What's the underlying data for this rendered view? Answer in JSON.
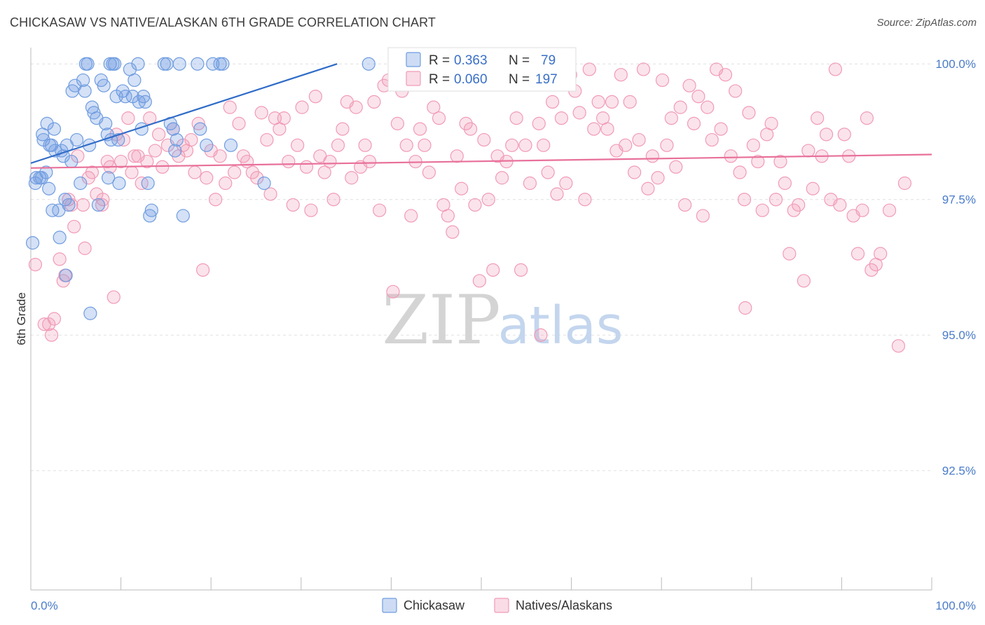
{
  "title": "CHICKASAW VS NATIVE/ALASKAN 6TH GRADE CORRELATION CHART",
  "source": "Source: ZipAtlas.com",
  "watermark": {
    "zip": "ZIP",
    "atlas": "atlas"
  },
  "chart_data": {
    "type": "scatter",
    "xlabel": "",
    "ylabel": "6th Grade",
    "xlim": [
      0,
      100
    ],
    "ylim": [
      90.3,
      100.3
    ],
    "x_tick_labels": [
      "0.0%",
      "100.0%"
    ],
    "y_ticks": [
      92.5,
      95.0,
      97.5,
      100.0
    ],
    "y_tick_labels": [
      "92.5%",
      "95.0%",
      "97.5%",
      "100.0%"
    ],
    "grid": "horizontal dashed",
    "legend_position": "top-center",
    "bottom_legend": [
      "Chickasaw",
      "Natives/Alaskans"
    ],
    "stats": [
      {
        "r_label": "R =",
        "r": "0.363",
        "n_label": "N =",
        "n": "79",
        "color": "#6f9ce0"
      },
      {
        "r_label": "R =",
        "r": "0.060",
        "n_label": "N =",
        "n": "197",
        "color": "#f19bb6"
      }
    ],
    "series": [
      {
        "name": "Chickasaw",
        "color": "#6f9ce0",
        "trend": {
          "x": [
            0,
            34
          ],
          "y": [
            98.17,
            100.0
          ]
        },
        "points": [
          [
            0.2,
            96.7
          ],
          [
            0.5,
            97.8
          ],
          [
            0.6,
            97.9
          ],
          [
            1.0,
            97.9
          ],
          [
            1.2,
            97.9
          ],
          [
            1.3,
            98.7
          ],
          [
            1.4,
            98.6
          ],
          [
            1.7,
            98.0
          ],
          [
            1.8,
            98.9
          ],
          [
            2.0,
            97.7
          ],
          [
            2.1,
            98.5
          ],
          [
            2.3,
            98.5
          ],
          [
            2.4,
            97.3
          ],
          [
            2.6,
            98.8
          ],
          [
            2.7,
            98.4
          ],
          [
            3.1,
            97.3
          ],
          [
            3.2,
            96.8
          ],
          [
            3.4,
            98.4
          ],
          [
            3.6,
            98.3
          ],
          [
            3.8,
            97.5
          ],
          [
            3.9,
            96.1
          ],
          [
            4.0,
            98.5
          ],
          [
            4.2,
            97.4
          ],
          [
            4.5,
            98.2
          ],
          [
            4.6,
            99.5
          ],
          [
            4.9,
            99.6
          ],
          [
            5.1,
            98.6
          ],
          [
            5.5,
            97.8
          ],
          [
            5.8,
            99.7
          ],
          [
            6.0,
            99.5
          ],
          [
            6.1,
            100.0
          ],
          [
            6.3,
            100.0
          ],
          [
            6.5,
            98.5
          ],
          [
            6.6,
            95.4
          ],
          [
            6.8,
            99.2
          ],
          [
            7.0,
            99.1
          ],
          [
            7.3,
            99.0
          ],
          [
            7.5,
            97.4
          ],
          [
            7.8,
            99.7
          ],
          [
            8.1,
            99.6
          ],
          [
            8.3,
            98.9
          ],
          [
            8.5,
            98.7
          ],
          [
            8.6,
            97.9
          ],
          [
            8.8,
            100.0
          ],
          [
            8.9,
            98.6
          ],
          [
            9.1,
            100.0
          ],
          [
            9.3,
            100.0
          ],
          [
            9.5,
            99.4
          ],
          [
            9.7,
            98.6
          ],
          [
            9.8,
            97.8
          ],
          [
            10.2,
            99.5
          ],
          [
            10.5,
            99.4
          ],
          [
            11.0,
            99.9
          ],
          [
            11.3,
            99.4
          ],
          [
            11.5,
            99.7
          ],
          [
            11.9,
            100.0
          ],
          [
            12.0,
            99.3
          ],
          [
            12.3,
            98.8
          ],
          [
            12.5,
            99.4
          ],
          [
            12.7,
            99.3
          ],
          [
            13.0,
            97.8
          ],
          [
            13.2,
            97.2
          ],
          [
            13.4,
            97.3
          ],
          [
            14.8,
            100.0
          ],
          [
            15.1,
            100.0
          ],
          [
            15.5,
            98.9
          ],
          [
            15.8,
            98.8
          ],
          [
            16.0,
            98.4
          ],
          [
            16.2,
            98.6
          ],
          [
            16.5,
            100.0
          ],
          [
            16.9,
            97.2
          ],
          [
            18.5,
            100.0
          ],
          [
            18.8,
            98.8
          ],
          [
            19.5,
            98.5
          ],
          [
            20.2,
            100.0
          ],
          [
            21.0,
            100.0
          ],
          [
            21.3,
            100.0
          ],
          [
            22.2,
            98.5
          ],
          [
            25.9,
            97.8
          ],
          [
            37.5,
            100.0
          ]
        ]
      },
      {
        "name": "Natives/Alaskans",
        "color": "#f19bb6",
        "trend": {
          "x": [
            0,
            100
          ],
          "y": [
            98.08,
            98.33
          ]
        },
        "points": [
          [
            0.5,
            96.3
          ],
          [
            1.5,
            95.2
          ],
          [
            2.0,
            95.2
          ],
          [
            2.3,
            95.0
          ],
          [
            2.6,
            95.3
          ],
          [
            3.2,
            96.4
          ],
          [
            3.6,
            96.0
          ],
          [
            4.2,
            97.5
          ],
          [
            4.5,
            97.4
          ],
          [
            4.8,
            97.0
          ],
          [
            5.2,
            98.3
          ],
          [
            5.8,
            97.4
          ],
          [
            6.0,
            96.6
          ],
          [
            6.4,
            97.9
          ],
          [
            6.8,
            98.0
          ],
          [
            7.3,
            97.6
          ],
          [
            7.9,
            97.4
          ],
          [
            8.0,
            97.5
          ],
          [
            8.5,
            98.2
          ],
          [
            8.8,
            98.1
          ],
          [
            9.5,
            98.7
          ],
          [
            10.0,
            98.2
          ],
          [
            10.3,
            98.6
          ],
          [
            10.8,
            99.0
          ],
          [
            11.2,
            98.0
          ],
          [
            11.5,
            98.3
          ],
          [
            11.9,
            98.3
          ],
          [
            12.3,
            97.8
          ],
          [
            12.9,
            98.2
          ],
          [
            13.2,
            99.0
          ],
          [
            13.8,
            98.4
          ],
          [
            14.2,
            98.7
          ],
          [
            14.6,
            98.1
          ],
          [
            15.2,
            98.5
          ],
          [
            15.8,
            98.8
          ],
          [
            16.4,
            98.3
          ],
          [
            16.9,
            98.5
          ],
          [
            17.3,
            98.4
          ],
          [
            17.8,
            98.6
          ],
          [
            18.2,
            98.0
          ],
          [
            18.6,
            98.9
          ],
          [
            19.1,
            96.2
          ],
          [
            19.5,
            97.9
          ],
          [
            20.0,
            98.4
          ],
          [
            20.5,
            97.5
          ],
          [
            21.0,
            98.3
          ],
          [
            21.6,
            97.8
          ],
          [
            22.1,
            99.2
          ],
          [
            22.6,
            98.0
          ],
          [
            23.1,
            98.9
          ],
          [
            23.6,
            98.3
          ],
          [
            24.0,
            98.2
          ],
          [
            24.6,
            98.0
          ],
          [
            25.1,
            97.9
          ],
          [
            25.6,
            99.1
          ],
          [
            26.2,
            98.6
          ],
          [
            26.6,
            97.6
          ],
          [
            27.1,
            99.0
          ],
          [
            27.6,
            98.8
          ],
          [
            28.1,
            99.0
          ],
          [
            28.6,
            98.2
          ],
          [
            29.1,
            97.4
          ],
          [
            29.6,
            98.5
          ],
          [
            30.1,
            99.2
          ],
          [
            30.6,
            98.1
          ],
          [
            31.1,
            97.3
          ],
          [
            31.6,
            99.4
          ],
          [
            32.1,
            98.3
          ],
          [
            32.6,
            98.0
          ],
          [
            33.2,
            98.2
          ],
          [
            33.6,
            97.5
          ],
          [
            34.1,
            98.5
          ],
          [
            34.6,
            98.8
          ],
          [
            35.1,
            99.3
          ],
          [
            35.6,
            97.9
          ],
          [
            36.1,
            99.2
          ],
          [
            36.6,
            98.1
          ],
          [
            37.1,
            98.5
          ],
          [
            37.6,
            98.2
          ],
          [
            38.1,
            99.3
          ],
          [
            38.7,
            97.3
          ],
          [
            39.2,
            99.6
          ],
          [
            39.7,
            99.7
          ],
          [
            40.2,
            95.8
          ],
          [
            40.7,
            98.9
          ],
          [
            41.2,
            99.5
          ],
          [
            41.7,
            98.5
          ],
          [
            42.2,
            97.2
          ],
          [
            42.7,
            98.2
          ],
          [
            43.2,
            98.8
          ],
          [
            43.7,
            98.5
          ],
          [
            44.2,
            98.0
          ],
          [
            44.7,
            99.2
          ],
          [
            45.3,
            99.0
          ],
          [
            45.8,
            97.4
          ],
          [
            46.3,
            97.2
          ],
          [
            46.8,
            96.9
          ],
          [
            47.3,
            98.3
          ],
          [
            47.8,
            97.7
          ],
          [
            48.3,
            98.9
          ],
          [
            48.8,
            98.8
          ],
          [
            49.3,
            97.4
          ],
          [
            49.8,
            96.0
          ],
          [
            50.3,
            98.6
          ],
          [
            50.8,
            97.5
          ],
          [
            51.3,
            96.2
          ],
          [
            51.8,
            98.3
          ],
          [
            52.3,
            97.9
          ],
          [
            52.8,
            98.2
          ],
          [
            53.4,
            98.5
          ],
          [
            53.9,
            99.0
          ],
          [
            54.4,
            96.2
          ],
          [
            54.9,
            98.5
          ],
          [
            55.4,
            97.8
          ],
          [
            55.9,
            99.9
          ],
          [
            56.4,
            98.9
          ],
          [
            56.9,
            98.5
          ],
          [
            57.4,
            98.0
          ],
          [
            57.9,
            99.3
          ],
          [
            58.4,
            97.6
          ],
          [
            58.9,
            99.0
          ],
          [
            59.4,
            97.8
          ],
          [
            59.9,
            99.8
          ],
          [
            60.4,
            99.5
          ],
          [
            60.9,
            99.1
          ],
          [
            61.5,
            97.5
          ],
          [
            62.0,
            99.9
          ],
          [
            62.5,
            98.8
          ],
          [
            63.0,
            99.3
          ],
          [
            63.5,
            99.0
          ],
          [
            64.0,
            98.8
          ],
          [
            64.5,
            99.3
          ],
          [
            65.0,
            98.4
          ],
          [
            65.5,
            99.8
          ],
          [
            66.0,
            98.5
          ],
          [
            66.5,
            99.3
          ],
          [
            67.0,
            98.0
          ],
          [
            67.5,
            98.6
          ],
          [
            68.0,
            99.9
          ],
          [
            68.5,
            97.7
          ],
          [
            69.0,
            98.3
          ],
          [
            69.6,
            97.9
          ],
          [
            70.1,
            99.7
          ],
          [
            70.6,
            98.5
          ],
          [
            71.1,
            99.0
          ],
          [
            71.6,
            98.1
          ],
          [
            72.1,
            99.2
          ],
          [
            72.6,
            97.4
          ],
          [
            73.1,
            99.6
          ],
          [
            73.6,
            98.9
          ],
          [
            74.1,
            99.4
          ],
          [
            74.6,
            97.2
          ],
          [
            75.1,
            99.2
          ],
          [
            75.6,
            98.6
          ],
          [
            76.1,
            99.9
          ],
          [
            76.6,
            98.8
          ],
          [
            77.1,
            99.8
          ],
          [
            77.7,
            98.3
          ],
          [
            78.2,
            99.5
          ],
          [
            78.7,
            98.0
          ],
          [
            79.2,
            97.5
          ],
          [
            79.7,
            99.1
          ],
          [
            80.2,
            98.5
          ],
          [
            80.7,
            98.2
          ],
          [
            81.2,
            97.3
          ],
          [
            81.7,
            98.7
          ],
          [
            82.2,
            98.9
          ],
          [
            82.7,
            97.5
          ],
          [
            83.2,
            98.2
          ],
          [
            83.7,
            97.8
          ],
          [
            84.2,
            96.5
          ],
          [
            84.7,
            97.3
          ],
          [
            85.2,
            97.4
          ],
          [
            85.8,
            96.0
          ],
          [
            86.3,
            98.4
          ],
          [
            86.8,
            97.7
          ],
          [
            87.3,
            99.0
          ],
          [
            87.8,
            98.3
          ],
          [
            88.3,
            98.7
          ],
          [
            88.8,
            97.5
          ],
          [
            89.3,
            99.9
          ],
          [
            89.8,
            97.4
          ],
          [
            90.3,
            98.7
          ],
          [
            90.8,
            98.3
          ],
          [
            91.3,
            97.2
          ],
          [
            91.8,
            96.5
          ],
          [
            92.3,
            97.3
          ],
          [
            92.8,
            99.0
          ],
          [
            93.3,
            96.2
          ],
          [
            93.8,
            96.3
          ],
          [
            94.3,
            96.5
          ],
          [
            95.3,
            97.3
          ],
          [
            96.3,
            94.8
          ],
          [
            97.0,
            97.8
          ],
          [
            3.8,
            96.1
          ],
          [
            9.2,
            95.7
          ],
          [
            56.6,
            95.0
          ],
          [
            79.3,
            95.5
          ]
        ]
      }
    ]
  }
}
